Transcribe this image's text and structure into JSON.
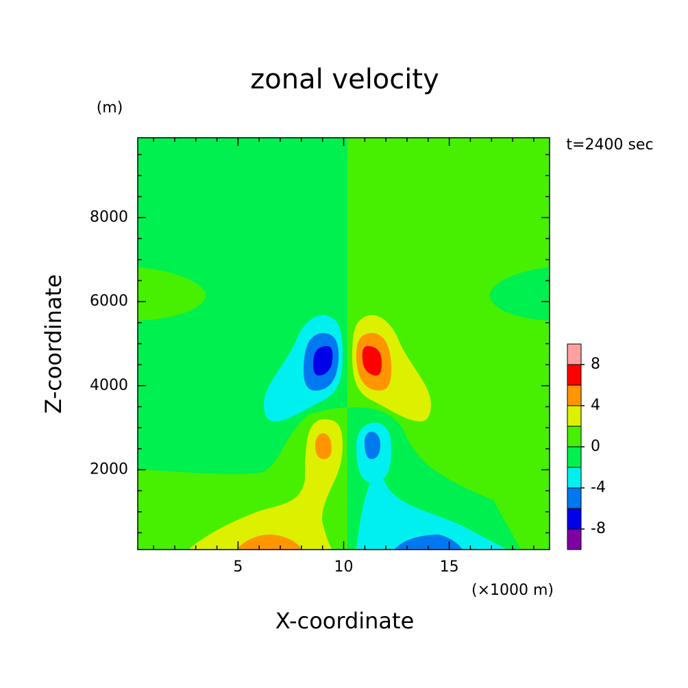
{
  "chart_data": {
    "type": "contour",
    "title": "zonal velocity",
    "x_label": "X-coordinate",
    "y_label": "Z-coordinate",
    "x_unit": "(×1000 m)",
    "y_unit": "(m)",
    "annotation": "t=2400 sec",
    "xlim": [
      0.25,
      19.75
    ],
    "xticks": [
      5,
      10,
      15
    ],
    "xminorticks": [
      1,
      2,
      3,
      4,
      6,
      7,
      8,
      9,
      11,
      12,
      13,
      14,
      16,
      17,
      18,
      19
    ],
    "ylim": [
      100,
      9900
    ],
    "yticks": [
      2000,
      4000,
      6000,
      8000
    ],
    "yminorticks": [
      500,
      1000,
      1500,
      2500,
      3000,
      3500,
      4500,
      5000,
      5500,
      6500,
      7000,
      7500,
      8500,
      9000,
      9500
    ],
    "levels": [
      -10,
      -8,
      -6,
      -4,
      -2,
      0,
      2,
      4,
      6,
      8,
      10
    ],
    "colors": [
      "#7f00a0",
      "#0000e8",
      "#0078f0",
      "#00f0f0",
      "#00f050",
      "#46f000",
      "#dcf000",
      "#ff9600",
      "#ff0000",
      "#ffa0a0"
    ],
    "colorbar_ticks": [
      -8,
      -4,
      0,
      4,
      8
    ]
  }
}
